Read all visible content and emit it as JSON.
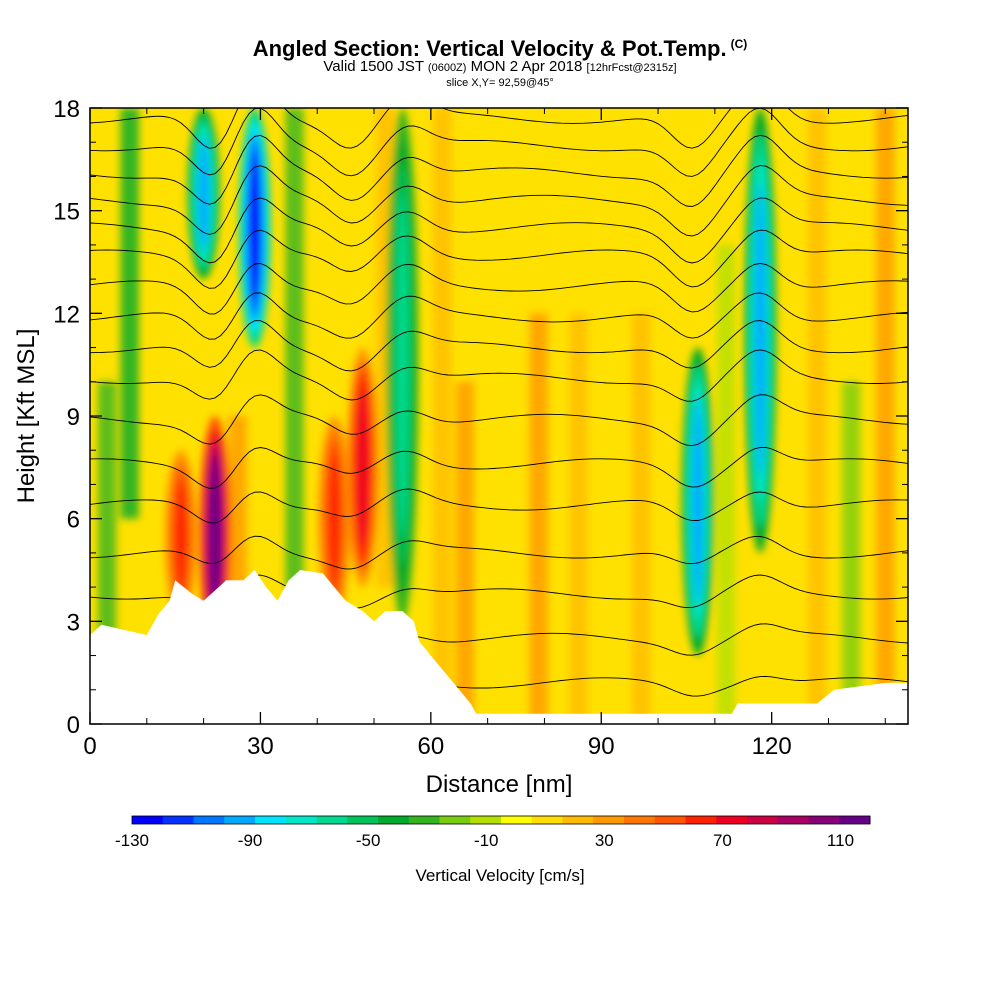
{
  "header": {
    "title": "Angled Section: Vertical Velocity & Pot.Temp.",
    "title_note": "(C)",
    "valid_prefix": "Valid 1500 JST",
    "valid_zulu": "(0600Z)",
    "valid_date": "MON 2 Apr 2018",
    "forecast_note": "[12hrFcst@2315z]",
    "slice_text": "slice X,Y= 92,59@45°"
  },
  "chart_data": {
    "type": "heatmap",
    "title": "Angled Section: Vertical Velocity & Pot.Temp.",
    "xlabel": "Distance [nm]",
    "ylabel": "Height [Kft MSL]",
    "xlim": [
      0,
      144
    ],
    "ylim": [
      0,
      18
    ],
    "x_ticks": [
      0,
      30,
      60,
      90,
      120
    ],
    "y_ticks": [
      0,
      3,
      6,
      9,
      12,
      15,
      18
    ],
    "colorbar": {
      "label": "Vertical Velocity [cm/s]",
      "range": [
        -130,
        120
      ],
      "tick_labels": [
        "-130",
        "-90",
        "-50",
        "-10",
        "30",
        "70",
        "110"
      ],
      "tick_values": [
        -130,
        -90,
        -50,
        -10,
        30,
        70,
        110
      ],
      "colors": [
        "#0000ff",
        "#0033ff",
        "#0077ff",
        "#00aaff",
        "#00e5ff",
        "#00e6c8",
        "#00d98f",
        "#00c45a",
        "#00aa2a",
        "#33b41e",
        "#7acc10",
        "#b4e000",
        "#ffff00",
        "#ffdd00",
        "#ffbb00",
        "#ff9900",
        "#ff7700",
        "#ff5500",
        "#ff2200",
        "#ee0022",
        "#cc0044",
        "#aa0066",
        "#880077",
        "#660088"
      ]
    },
    "features": [
      {
        "kind": "updraft",
        "x_nm": 22,
        "height_kft": [
          2,
          9
        ],
        "peak_cms": 110
      },
      {
        "kind": "updraft",
        "x_nm": 16,
        "height_kft": [
          3,
          8
        ],
        "peak_cms": 60
      },
      {
        "kind": "updraft",
        "x_nm": 48,
        "height_kft": [
          4,
          11
        ],
        "peak_cms": 70
      },
      {
        "kind": "updraft",
        "x_nm": 43,
        "height_kft": [
          3,
          9
        ],
        "peak_cms": 60
      },
      {
        "kind": "downdraft",
        "x_nm": 29,
        "height_kft": [
          11,
          18
        ],
        "peak_cms": -120
      },
      {
        "kind": "downdraft",
        "x_nm": 20,
        "height_kft": [
          13,
          18
        ],
        "peak_cms": -90
      },
      {
        "kind": "downdraft",
        "x_nm": 107,
        "height_kft": [
          2,
          11
        ],
        "peak_cms": -90
      },
      {
        "kind": "downdraft",
        "x_nm": 118,
        "height_kft": [
          5,
          18
        ],
        "peak_cms": -90
      },
      {
        "kind": "downdraft",
        "x_nm": 55,
        "height_kft": [
          3,
          18
        ],
        "peak_cms": -60
      }
    ],
    "terrain_kft": [
      [
        0,
        2.6
      ],
      [
        2,
        2.9
      ],
      [
        10,
        2.6
      ],
      [
        12,
        3.2
      ],
      [
        14,
        3.6
      ],
      [
        15,
        4.2
      ],
      [
        18,
        3.8
      ],
      [
        20,
        3.6
      ],
      [
        24,
        4.2
      ],
      [
        27,
        4.2
      ],
      [
        29,
        4.5
      ],
      [
        31,
        4.0
      ],
      [
        33,
        3.6
      ],
      [
        35,
        4.2
      ],
      [
        37,
        4.5
      ],
      [
        41,
        4.4
      ],
      [
        43,
        4.0
      ],
      [
        45,
        3.6
      ],
      [
        48,
        3.3
      ],
      [
        50,
        3.0
      ],
      [
        52,
        3.3
      ],
      [
        55,
        3.3
      ],
      [
        57,
        3.0
      ],
      [
        58,
        2.4
      ],
      [
        60,
        2.0
      ],
      [
        62,
        1.6
      ],
      [
        65,
        1.0
      ],
      [
        67,
        0.6
      ],
      [
        68,
        0.3
      ],
      [
        113,
        0.3
      ],
      [
        114,
        0.6
      ],
      [
        128,
        0.6
      ],
      [
        131,
        1.0
      ],
      [
        140,
        1.2
      ],
      [
        144,
        1.2
      ]
    ]
  }
}
